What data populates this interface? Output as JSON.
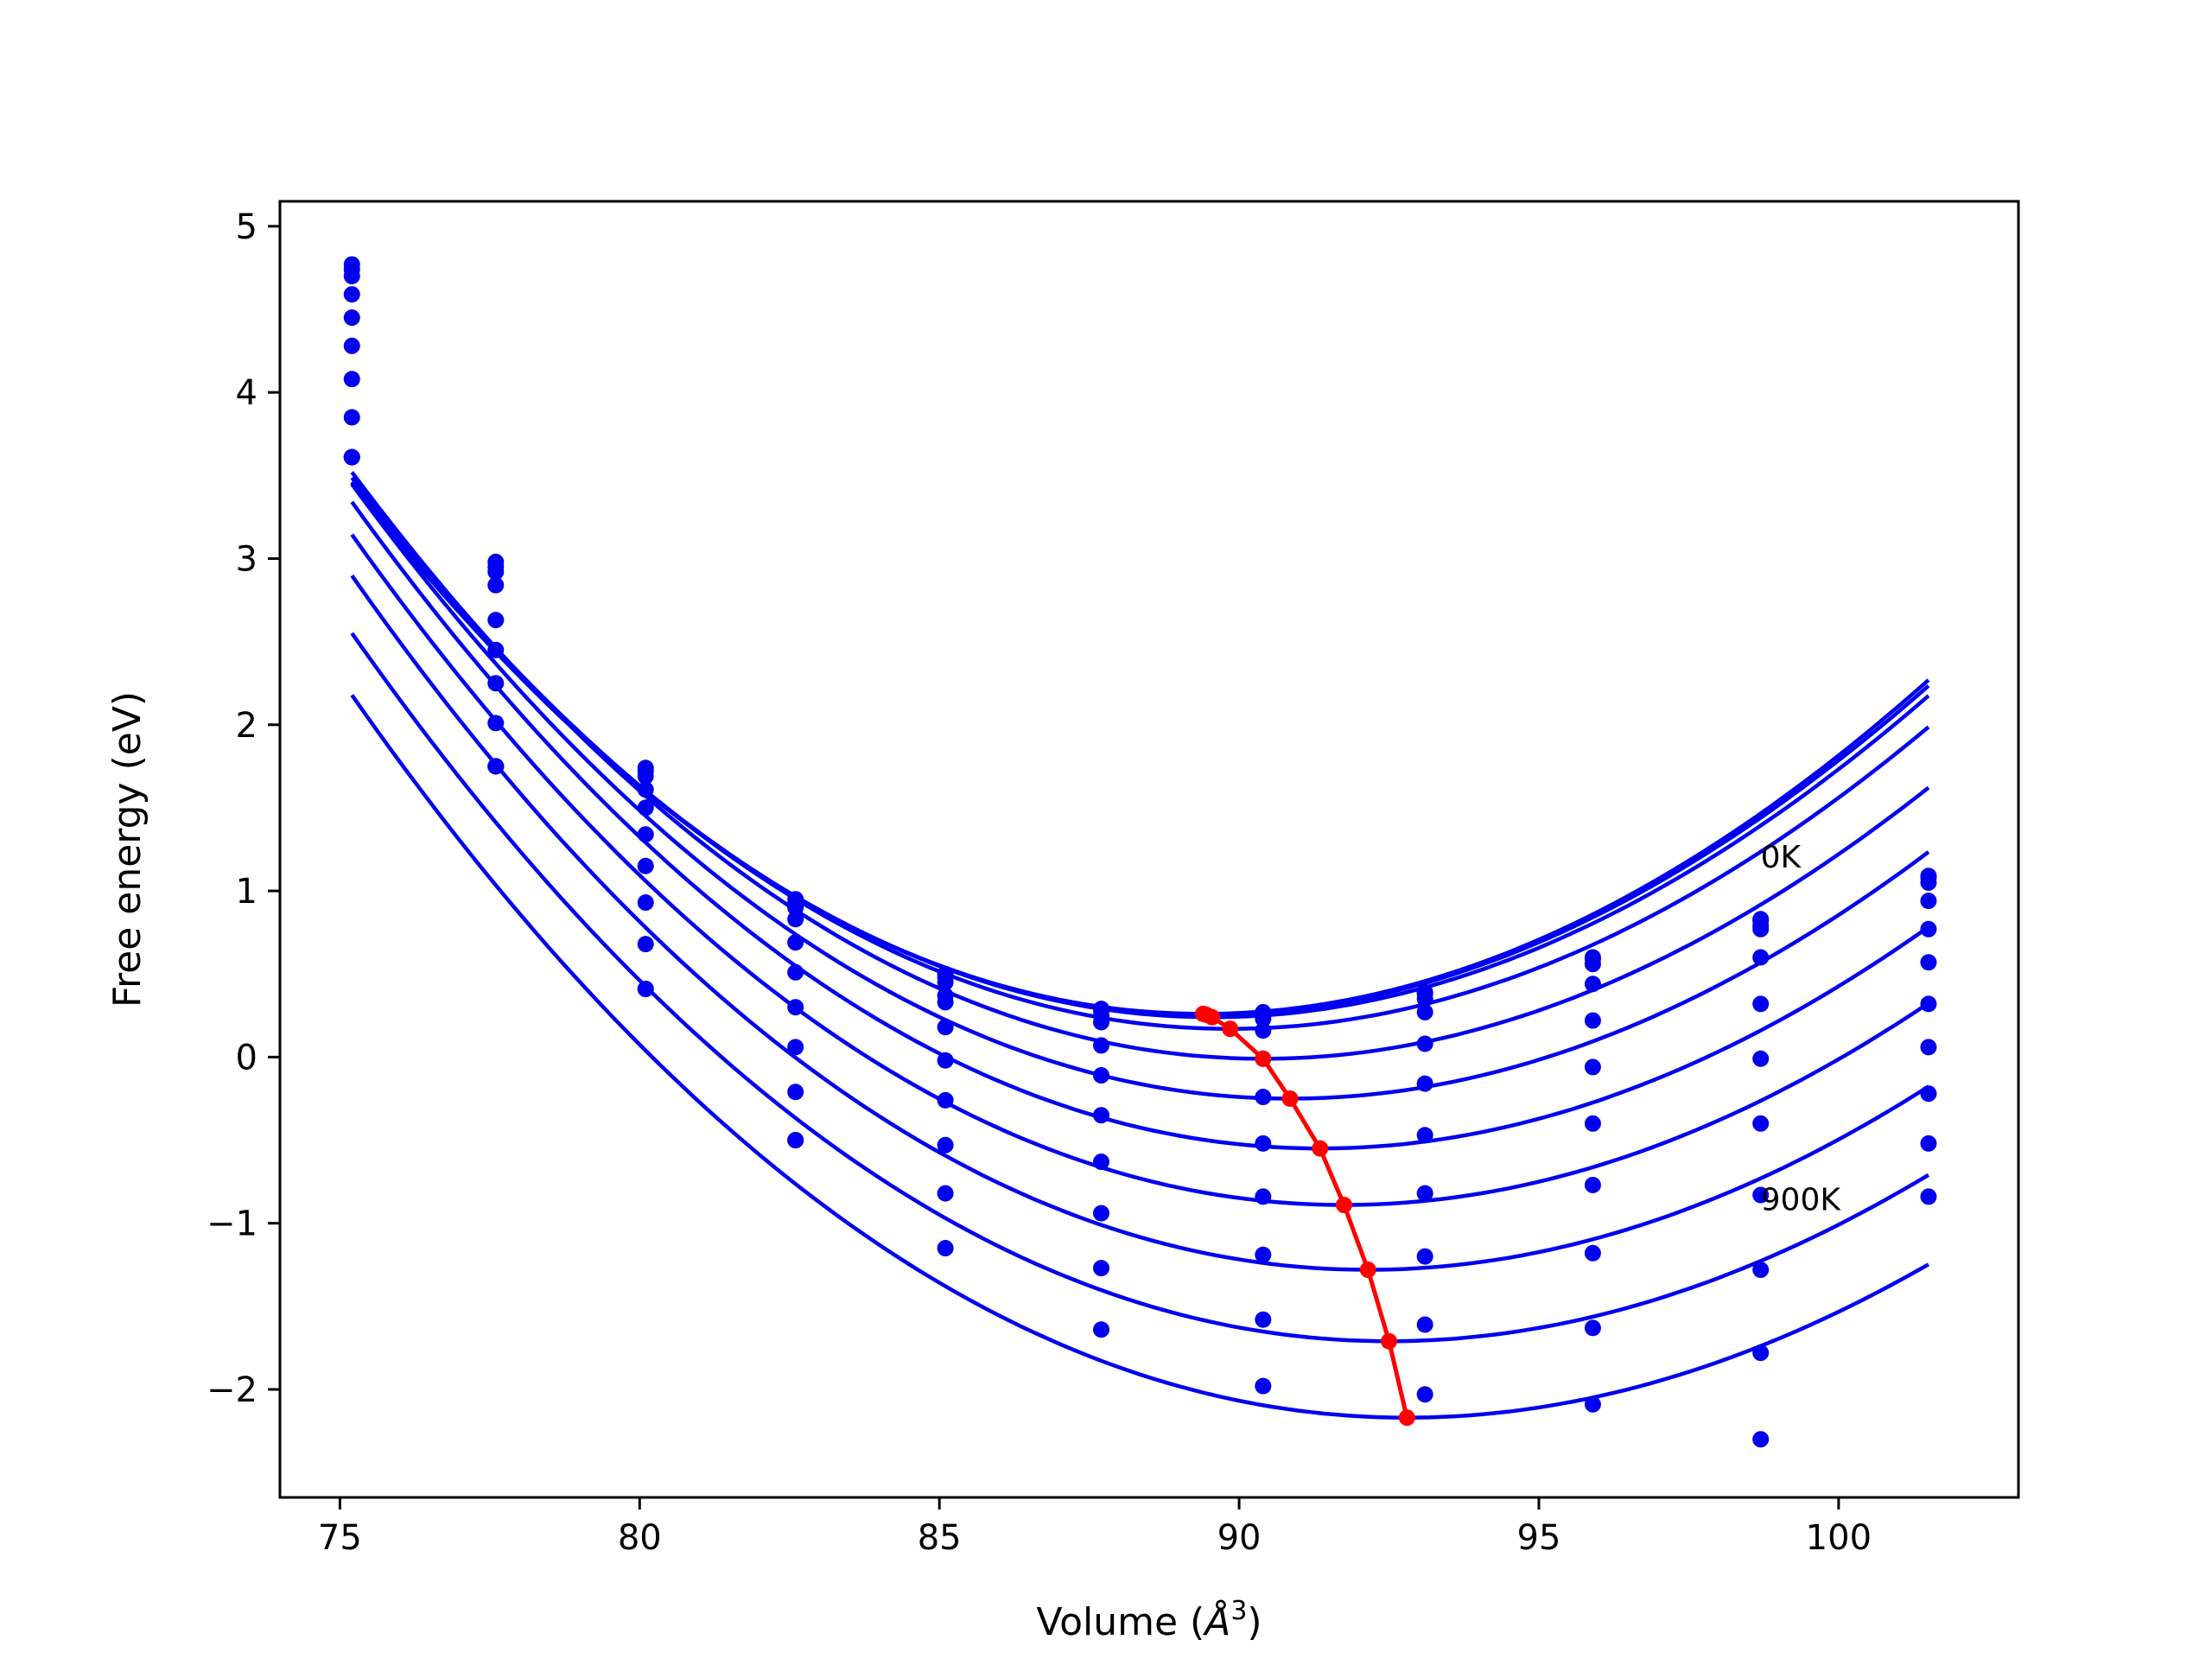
{
  "chart_data": {
    "type": "line",
    "title": "",
    "xlabel_prefix": "Volume (",
    "xlabel_symbol": "Å",
    "xlabel_power": "3",
    "xlabel_suffix": ")",
    "ylabel": "Free energy (eV)",
    "xlim": [
      74,
      103
    ],
    "ylim": [
      -2.65,
      5.15
    ],
    "xticks": [
      75,
      80,
      85,
      90,
      95,
      100
    ],
    "yticks": [
      -2,
      -1,
      0,
      1,
      2,
      3,
      4,
      5
    ],
    "xtick_labels": [
      "75",
      "80",
      "85",
      "90",
      "95",
      "100"
    ],
    "ytick_labels": [
      "−2",
      "−1",
      "0",
      "1",
      "2",
      "3",
      "4",
      "5"
    ],
    "grid": false,
    "colors": {
      "data": "#0000ee",
      "minimum": "#ff0000"
    },
    "x": [
      75.2,
      77.6,
      80.1,
      82.6,
      85.1,
      87.7,
      90.4,
      93.1,
      95.9,
      98.7,
      101.5
    ],
    "series": [
      {
        "points": [
          4.77,
          2.98,
          1.74,
          0.95,
          0.5,
          0.29,
          0.27,
          0.39,
          0.6,
          0.83,
          1.09
        ],
        "fit": {
          "a": 0.0147,
          "v0": 89.4,
          "e0": 0.26
        }
      },
      {
        "points": [
          4.74,
          2.95,
          1.72,
          0.93,
          0.48,
          0.28,
          0.26,
          0.38,
          0.59,
          0.82,
          1.08
        ],
        "fit": {
          "a": 0.0146,
          "v0": 89.45,
          "e0": 0.255
        }
      },
      {
        "points": [
          4.7,
          2.92,
          1.69,
          0.9,
          0.45,
          0.25,
          0.23,
          0.35,
          0.56,
          0.79,
          1.05
        ],
        "fit": {
          "a": 0.0145,
          "v0": 89.55,
          "e0": 0.24
        }
      },
      {
        "points": [
          4.59,
          2.84,
          1.61,
          0.83,
          0.37,
          0.21,
          0.16,
          0.27,
          0.44,
          0.77,
          0.94
        ],
        "fit": {
          "a": 0.0143,
          "v0": 89.85,
          "e0": 0.17
        }
      },
      {
        "points": [
          4.45,
          2.63,
          1.5,
          0.69,
          0.33,
          0.07,
          -0.01,
          0.08,
          0.22,
          0.6,
          0.77
        ],
        "fit": {
          "a": 0.0141,
          "v0": 90.4,
          "e0": -0.01
        }
      },
      {
        "points": [
          4.28,
          2.45,
          1.34,
          0.51,
          0.18,
          -0.11,
          -0.24,
          -0.16,
          -0.06,
          0.32,
          0.57
        ],
        "fit": {
          "a": 0.0139,
          "v0": 90.85,
          "e0": -0.25
        }
      },
      {
        "points": [
          4.08,
          2.25,
          1.15,
          0.3,
          -0.02,
          -0.35,
          -0.52,
          -0.47,
          -0.4,
          -0.01,
          0.32
        ],
        "fit": {
          "a": 0.0137,
          "v0": 91.35,
          "e0": -0.55
        }
      },
      {
        "points": [
          3.85,
          2.01,
          0.93,
          0.06,
          -0.26,
          -0.63,
          -0.84,
          -0.82,
          -0.77,
          -0.4,
          0.06
        ],
        "fit": {
          "a": 0.0135,
          "v0": 91.75,
          "e0": -0.89
        }
      },
      {
        "points": [
          3.61,
          1.75,
          0.68,
          -0.21,
          -0.53,
          -0.94,
          -1.19,
          -1.2,
          -1.18,
          -0.83,
          -0.22
        ],
        "fit": {
          "a": 0.0133,
          "v0": 92.15,
          "e0": -1.28
        }
      },
      {
        "points": [
          3.61,
          1.75,
          0.41,
          -0.5,
          -0.82,
          -1.27,
          -1.58,
          -1.61,
          -1.63,
          -1.28,
          -0.52
        ],
        "fit": {
          "a": 0.013,
          "v0": 92.5,
          "e0": -1.71
        }
      },
      {
        "points": [
          3.61,
          1.75,
          0.41,
          -0.5,
          -1.15,
          -1.64,
          -1.98,
          -2.03,
          -2.09,
          -1.78,
          -0.84
        ],
        "fit": {
          "a": 0.0128,
          "v0": 92.8,
          "e0": -2.17
        }
      }
    ],
    "fit_xrange": [
      75.2,
      101.5
    ],
    "minimum_curve": {
      "x": [
        89.4,
        89.45,
        89.55,
        89.85,
        90.4,
        90.85,
        91.35,
        91.75,
        92.15,
        92.5,
        92.8
      ],
      "y": [
        0.26,
        0.255,
        0.24,
        0.17,
        -0.01,
        -0.25,
        -0.55,
        -0.89,
        -1.28,
        -1.71,
        -2.17
      ]
    },
    "extra_points": {
      "x": [
        98.7
      ],
      "y": [
        -2.3
      ]
    },
    "annotations": [
      {
        "text": "0K",
        "x": 98.7,
        "y": 1.14
      },
      {
        "text": "900K",
        "x": 98.7,
        "y": -0.92
      }
    ]
  }
}
